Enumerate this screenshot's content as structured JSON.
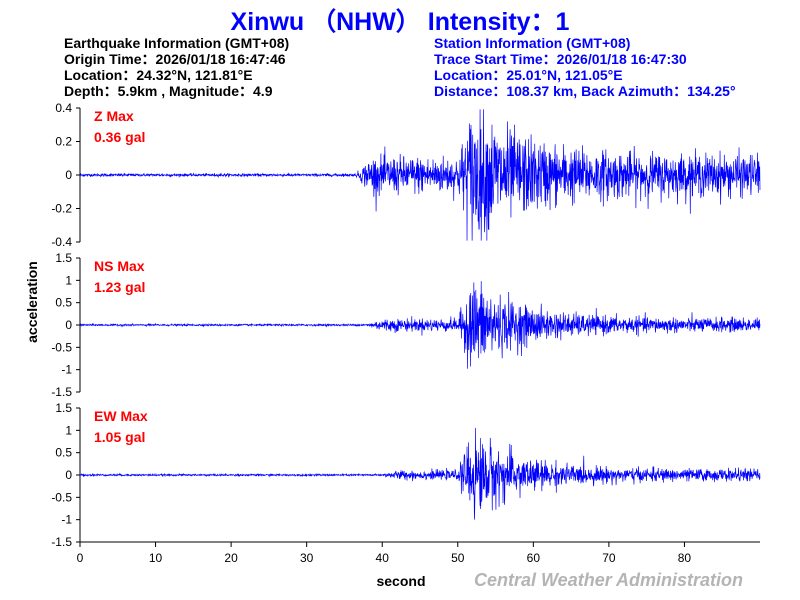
{
  "header": {
    "title": "Xinwu （NHW） Intensity：1"
  },
  "earthquake": {
    "heading": "Earthquake Information  (GMT+08)",
    "origin_time": "Origin Time：2026/01/18 16:47:46",
    "location": "Location：24.32°N, 121.81°E",
    "depth_magnitude": "Depth：5.9km , Magnitude：4.9"
  },
  "station": {
    "heading": "Station Information  (GMT+08)",
    "trace_start": "Trace Start Time：2026/01/18 16:47:30",
    "location": "Location：25.01°N, 121.05°E",
    "distance": "Distance：108.37 km, Back Azimuth：134.25°"
  },
  "credit": "Central Weather Administration",
  "colors": {
    "trace": "#0000ff",
    "max_label": "#ff0000",
    "title": "#0000ff",
    "credit": "#b4b4b4"
  },
  "chart_data": {
    "type": "line",
    "xlabel": "second",
    "ylabel": "acceleration",
    "xlim": [
      0,
      90
    ],
    "xticks": [
      0,
      10,
      20,
      30,
      40,
      50,
      60,
      70,
      80
    ],
    "panels": [
      {
        "component": "Z",
        "max_label": "Z Max",
        "max_value": "0.36 gal",
        "ylim": [
          -0.4,
          0.4
        ],
        "yticks": [
          -0.4,
          -0.2,
          0,
          0.2,
          0.4
        ],
        "ytick_labels": [
          "-0.4",
          "-0.2",
          "0",
          "0.2",
          "0.4"
        ],
        "envelope": {
          "noise": 0.008,
          "p_onset": 36.5,
          "p_amp": 0.1,
          "s_onset": 52,
          "s_peak": 0.3,
          "coda": 0.05,
          "decay": 7
        }
      },
      {
        "component": "NS",
        "max_label": "NS Max",
        "max_value": "1.23 gal",
        "ylim": [
          -1.5,
          1.5
        ],
        "yticks": [
          -1.5,
          -1,
          -0.5,
          0,
          0.5,
          1,
          1.5
        ],
        "ytick_labels": [
          "-1.5",
          "-1",
          "-0.5",
          "0",
          "0.5",
          "1",
          "1.5"
        ],
        "envelope": {
          "noise": 0.02,
          "p_onset": 38,
          "p_amp": 0.12,
          "s_onset": 52,
          "s_peak": 0.9,
          "coda": 0.06,
          "decay": 6
        }
      },
      {
        "component": "EW",
        "max_label": "EW Max",
        "max_value": "1.05 gal",
        "ylim": [
          -1.5,
          1.5
        ],
        "yticks": [
          -1.5,
          -1,
          -0.5,
          0,
          0.5,
          1,
          1.5
        ],
        "ytick_labels": [
          "-1.5",
          "-1",
          "-0.5",
          "0",
          "0.5",
          "1",
          "1.5"
        ],
        "envelope": {
          "noise": 0.02,
          "p_onset": 40,
          "p_amp": 0.08,
          "s_onset": 52,
          "s_peak": 0.85,
          "coda": 0.06,
          "decay": 6
        }
      }
    ]
  }
}
